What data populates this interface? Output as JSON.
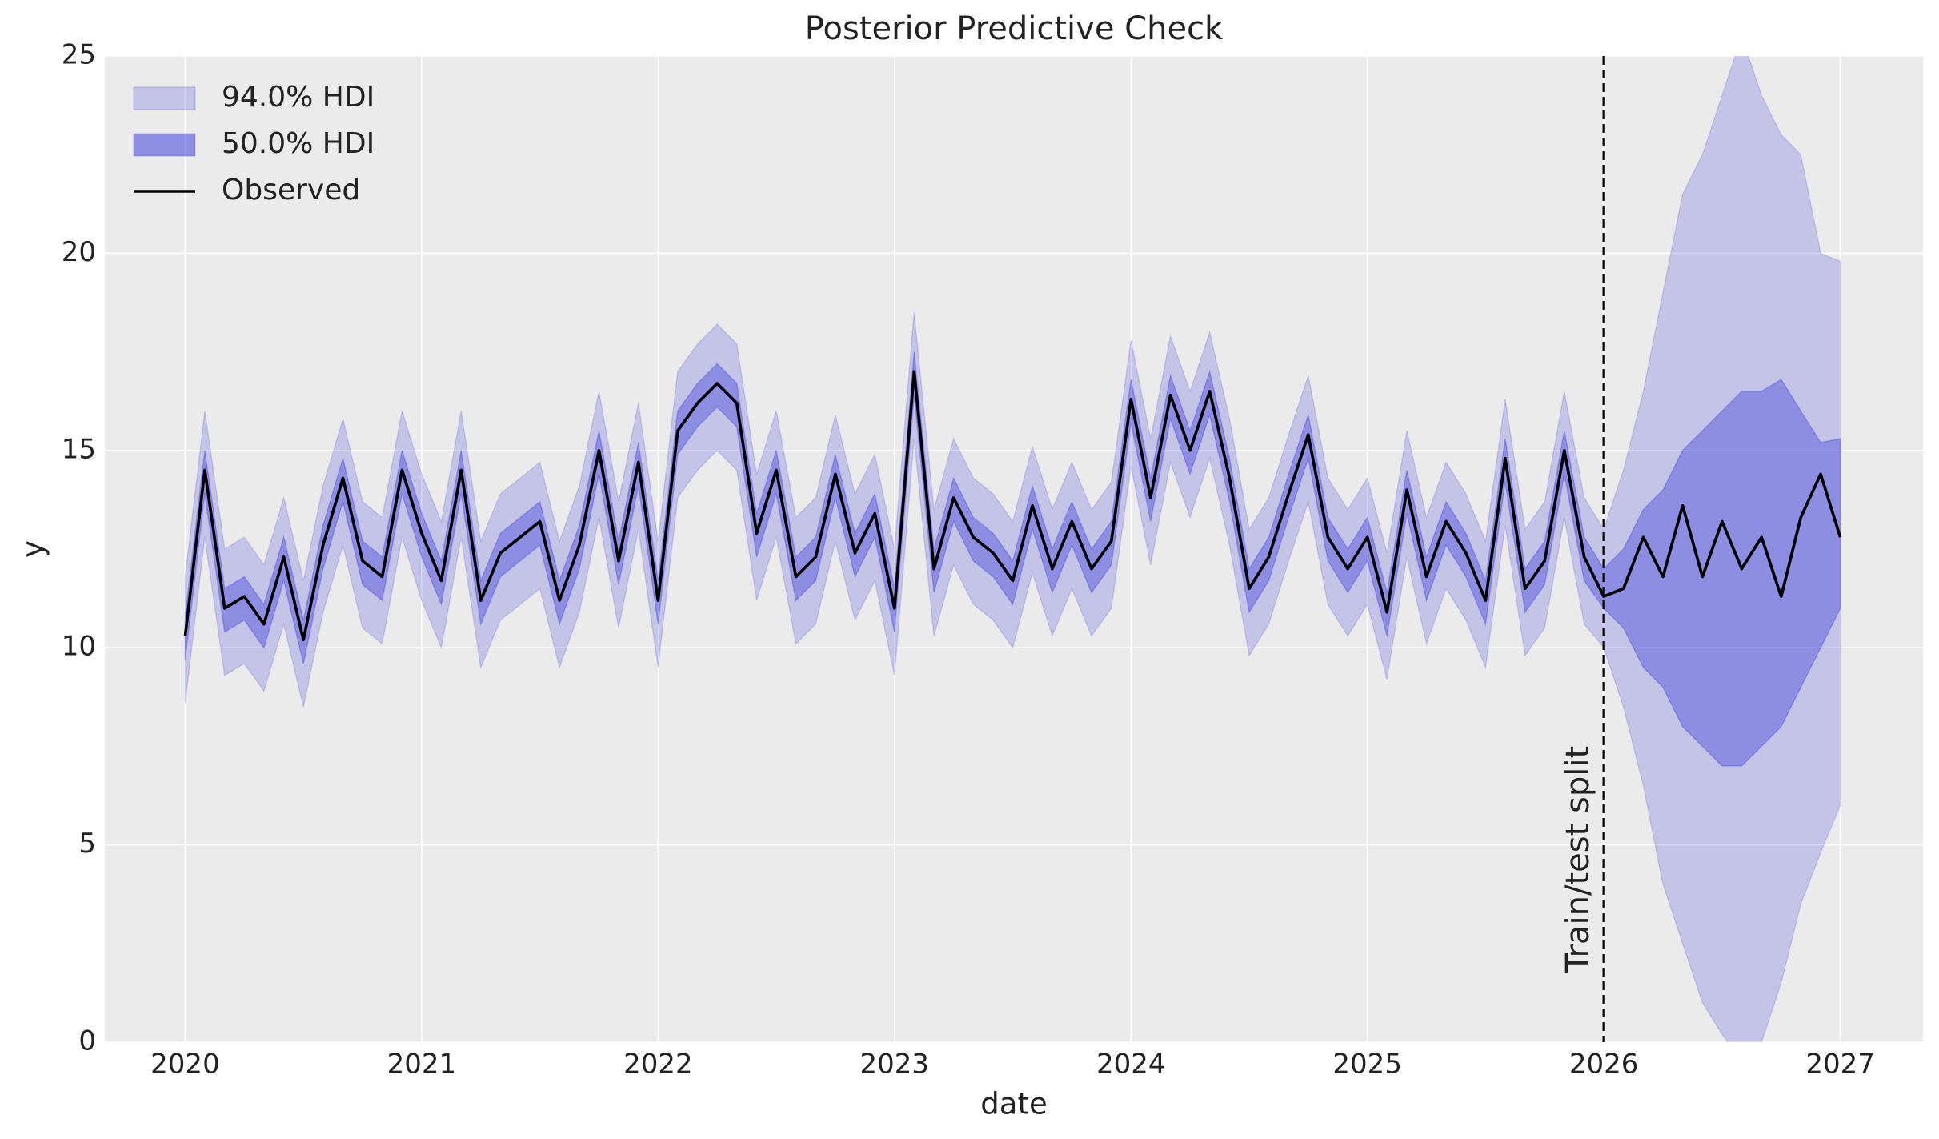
{
  "chart_data": {
    "type": "hdi_line",
    "title": "Posterior Predictive Check",
    "xlabel": "date",
    "ylabel": "y",
    "x": [
      2020,
      2020.083,
      2020.167,
      2020.25,
      2020.333,
      2020.417,
      2020.5,
      2020.583,
      2020.667,
      2020.75,
      2020.833,
      2020.917,
      2021,
      2021.083,
      2021.167,
      2021.25,
      2021.333,
      2021.417,
      2021.5,
      2021.583,
      2021.667,
      2021.75,
      2021.833,
      2021.917,
      2022,
      2022.083,
      2022.167,
      2022.25,
      2022.333,
      2022.417,
      2022.5,
      2022.583,
      2022.667,
      2022.75,
      2022.833,
      2022.917,
      2023,
      2023.083,
      2023.167,
      2023.25,
      2023.333,
      2023.417,
      2023.5,
      2023.583,
      2023.667,
      2023.75,
      2023.833,
      2023.917,
      2024,
      2024.083,
      2024.167,
      2024.25,
      2024.333,
      2024.417,
      2024.5,
      2024.583,
      2024.667,
      2024.75,
      2024.833,
      2024.917,
      2025,
      2025.083,
      2025.167,
      2025.25,
      2025.333,
      2025.417,
      2025.5,
      2025.583,
      2025.667,
      2025.75,
      2025.833,
      2025.917,
      2026,
      2026.083,
      2026.167,
      2026.25,
      2026.333,
      2026.417,
      2026.5,
      2026.583,
      2026.667,
      2026.75,
      2026.833,
      2026.917,
      2027
    ],
    "series": [
      {
        "name": "94.0% HDI",
        "color": "#3c3cdc",
        "alpha": 0.22,
        "lower": [
          8.6,
          12.8,
          9.3,
          9.6,
          8.9,
          10.6,
          8.5,
          10.9,
          12.6,
          10.5,
          10.1,
          12.8,
          11.2,
          10.0,
          12.8,
          9.5,
          10.7,
          11.1,
          11.5,
          9.5,
          10.9,
          13.3,
          10.5,
          13.0,
          9.5,
          13.8,
          14.5,
          15.0,
          14.5,
          11.2,
          12.8,
          10.1,
          10.6,
          12.7,
          10.7,
          11.7,
          9.3,
          15.3,
          10.3,
          12.1,
          11.1,
          10.7,
          10.0,
          11.9,
          10.3,
          11.5,
          10.3,
          11.0,
          14.6,
          12.1,
          14.7,
          13.3,
          14.8,
          12.6,
          9.8,
          10.6,
          12.2,
          13.7,
          11.1,
          10.3,
          11.1,
          9.2,
          12.3,
          10.1,
          11.5,
          10.7,
          9.5,
          13.1,
          9.8,
          10.5,
          13.3,
          10.6,
          10.0,
          8.5,
          6.5,
          4.0,
          2.5,
          1.0,
          0.2,
          -0.5,
          0.0,
          1.5,
          3.5,
          4.8,
          6.0
        ],
        "upper": [
          11.8,
          16.0,
          12.5,
          12.8,
          12.1,
          13.8,
          11.7,
          14.1,
          15.8,
          13.7,
          13.3,
          16.0,
          14.4,
          13.2,
          16.0,
          12.7,
          13.9,
          14.3,
          14.7,
          12.7,
          14.1,
          16.5,
          13.7,
          16.2,
          12.7,
          17.0,
          17.7,
          18.2,
          17.7,
          14.4,
          16.0,
          13.3,
          13.8,
          15.9,
          13.9,
          14.9,
          12.5,
          18.5,
          13.5,
          15.3,
          14.3,
          13.9,
          13.2,
          15.1,
          13.5,
          14.7,
          13.5,
          14.2,
          17.8,
          15.3,
          17.9,
          16.5,
          18.0,
          15.8,
          13.0,
          13.8,
          15.4,
          16.9,
          14.3,
          13.5,
          14.3,
          12.4,
          15.5,
          13.3,
          14.7,
          13.9,
          12.7,
          16.3,
          13.0,
          13.7,
          16.5,
          13.8,
          13.0,
          14.5,
          16.5,
          19.0,
          21.5,
          22.5,
          24.0,
          25.5,
          24.0,
          23.0,
          22.5,
          20.0,
          19.8
        ]
      },
      {
        "name": "50.0% HDI",
        "color": "#3c3cdc",
        "alpha": 0.4,
        "lower": [
          9.7,
          13.9,
          10.4,
          10.7,
          10.0,
          11.7,
          9.6,
          12.0,
          13.7,
          11.6,
          11.2,
          13.9,
          12.3,
          11.1,
          13.9,
          10.6,
          11.8,
          12.2,
          12.6,
          10.6,
          12.0,
          14.4,
          11.6,
          14.1,
          10.6,
          14.9,
          15.6,
          16.1,
          15.6,
          12.3,
          13.9,
          11.2,
          11.7,
          13.8,
          11.8,
          12.8,
          10.4,
          16.4,
          11.4,
          13.2,
          12.2,
          11.8,
          11.1,
          13.0,
          11.4,
          12.6,
          11.4,
          12.1,
          15.7,
          13.2,
          15.8,
          14.4,
          15.9,
          13.7,
          10.9,
          11.7,
          13.3,
          14.8,
          12.2,
          11.4,
          12.2,
          10.3,
          13.4,
          11.2,
          12.6,
          11.8,
          10.6,
          14.2,
          10.9,
          11.6,
          14.4,
          11.7,
          11.0,
          10.5,
          9.5,
          9.0,
          8.0,
          7.5,
          7.0,
          7.0,
          7.5,
          8.0,
          9.0,
          10.0,
          11.0
        ],
        "upper": [
          10.8,
          15.0,
          11.5,
          11.8,
          11.1,
          12.8,
          10.7,
          13.1,
          14.8,
          12.7,
          12.3,
          15.0,
          13.4,
          12.2,
          15.0,
          11.7,
          12.9,
          13.3,
          13.7,
          11.7,
          13.1,
          15.5,
          12.7,
          15.2,
          11.7,
          16.0,
          16.7,
          17.2,
          16.7,
          13.4,
          15.0,
          12.3,
          12.8,
          14.9,
          12.9,
          13.9,
          11.5,
          17.5,
          12.5,
          14.3,
          13.3,
          12.9,
          12.2,
          14.1,
          12.5,
          13.7,
          12.5,
          13.2,
          16.8,
          14.3,
          16.9,
          15.5,
          17.0,
          14.8,
          12.0,
          12.8,
          14.4,
          15.9,
          13.3,
          12.5,
          13.3,
          11.4,
          14.5,
          12.3,
          13.7,
          12.9,
          11.7,
          15.3,
          12.0,
          12.7,
          15.5,
          12.8,
          12.0,
          12.5,
          13.5,
          14.0,
          15.0,
          15.5,
          16.0,
          16.5,
          16.5,
          16.8,
          16.0,
          15.2,
          15.3
        ]
      },
      {
        "name": "Observed",
        "color": "#000000",
        "values": [
          10.3,
          14.5,
          11.0,
          11.3,
          10.6,
          12.3,
          10.2,
          12.6,
          14.3,
          12.2,
          11.8,
          14.5,
          12.9,
          11.7,
          14.5,
          11.2,
          12.4,
          12.8,
          13.2,
          11.2,
          12.6,
          15.0,
          12.2,
          14.7,
          11.2,
          15.5,
          16.2,
          16.7,
          16.2,
          12.9,
          14.5,
          11.8,
          12.3,
          14.4,
          12.4,
          13.4,
          11.0,
          17.0,
          12.0,
          13.8,
          12.8,
          12.4,
          11.7,
          13.6,
          12.0,
          13.2,
          12.0,
          12.7,
          16.3,
          13.8,
          16.4,
          15.0,
          16.5,
          14.3,
          11.5,
          12.3,
          13.9,
          15.4,
          12.8,
          12.0,
          12.8,
          10.9,
          14.0,
          11.8,
          13.2,
          12.4,
          11.2,
          14.8,
          11.5,
          12.2,
          15.0,
          12.3,
          11.3,
          11.5,
          12.8,
          11.8,
          13.6,
          11.8,
          13.2,
          12.0,
          12.8,
          11.3,
          13.3,
          14.4,
          12.8
        ]
      }
    ],
    "vline": {
      "x": 2026,
      "label": "Train/test split",
      "color": "#000000"
    },
    "xlim": [
      2019.66,
      2027.35
    ],
    "xticks": [
      2020,
      2021,
      2022,
      2023,
      2024,
      2025,
      2026,
      2027
    ],
    "ylim": [
      0,
      25
    ],
    "yticks": [
      0,
      5,
      10,
      15,
      20,
      25
    ],
    "grid": true,
    "legend": "upper left"
  }
}
